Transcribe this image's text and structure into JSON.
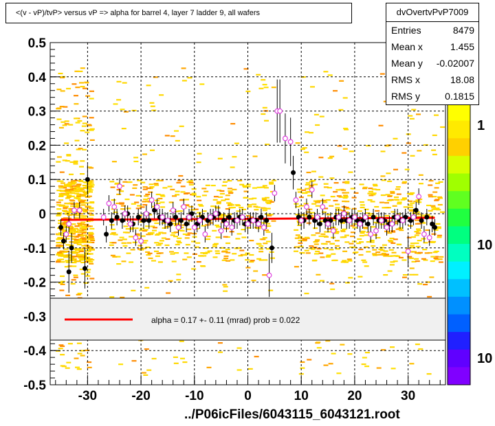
{
  "title": "<(v - vP)/tvP> versus   vP => alpha for barrel 4, layer 7 ladder 9, all wafers",
  "stats": {
    "name": "dvOvertvPvP7009",
    "rows": [
      {
        "label": "Entries",
        "value": "8479"
      },
      {
        "label": "Mean x",
        "value": "1.455"
      },
      {
        "label": "Mean y",
        "value": "-0.02007"
      },
      {
        "label": "RMS x",
        "value": "18.08"
      },
      {
        "label": "RMS y",
        "value": "0.1815"
      }
    ]
  },
  "fit_legend": "alpha =    0.17 +-   0.11 (mrad) prob = 0.022",
  "footer": "../P06icFiles/6043115_6043121.root",
  "colors": {
    "fit_line": "#ff0000",
    "profile_black": "#000000",
    "profile_magenta": "#e040e0",
    "scatter_main": "#ffd700",
    "legend_box": "#f0f0f0"
  },
  "chart_data": {
    "type": "scatter",
    "xlim": [
      -37,
      37
    ],
    "ylim": [
      -0.5,
      0.5
    ],
    "x_ticks": [
      -30,
      -20,
      -10,
      0,
      10,
      20,
      30
    ],
    "x_tick_labels": [
      "-30",
      "-20",
      "-10",
      "0",
      "10",
      "20",
      "30"
    ],
    "y_ticks": [
      -0.5,
      -0.4,
      -0.3,
      -0.2,
      -0.1,
      0,
      0.1,
      0.2,
      0.3,
      0.4,
      0.5
    ],
    "y_tick_labels": [
      "-0.5",
      "-0.4",
      "-0.3",
      "-0.2",
      "-0.1",
      "0",
      "0.1",
      "0.2",
      "0.3",
      "0.4",
      "0.5"
    ],
    "grid": true,
    "colorbar_labels": [
      "1",
      "10",
      "10"
    ],
    "fit": {
      "x": [
        -35,
        35
      ],
      "y": [
        -0.018,
        -0.012
      ]
    },
    "series": [
      {
        "marker": "filled-circle",
        "x": [
          -35.0,
          -34.5,
          -33.5,
          -33.0,
          -30.5,
          -30.0,
          -26.5,
          -25.5,
          -24.5,
          -23.5,
          -22.5,
          -21.5,
          -20.5,
          -19.5,
          -18.5,
          -17.5,
          -16.5,
          -15.5,
          -14.5,
          -13.5,
          -12.5,
          -11.5,
          -10.5,
          -9.5,
          -8.5,
          -7.5,
          -6.5,
          -5.5,
          -4.5,
          -3.5,
          -2.5,
          -1.5,
          -0.5,
          0.5,
          1.5,
          2.5,
          3.5,
          4.5,
          8.5,
          9.5,
          10.5,
          11.5,
          12.5,
          13.5,
          14.5,
          15.5,
          16.5,
          17.5,
          18.5,
          19.5,
          20.5,
          21.5,
          22.5,
          23.5,
          24.5,
          25.5,
          26.5,
          27.5,
          28.5,
          29.5,
          30.5,
          31.5,
          32.5,
          33.5,
          34.5,
          35.0
        ],
        "y": [
          -0.04,
          -0.08,
          -0.17,
          -0.1,
          -0.16,
          0.1,
          -0.06,
          -0.02,
          -0.01,
          -0.02,
          0.0,
          -0.03,
          -0.01,
          -0.02,
          -0.02,
          0.01,
          -0.01,
          -0.02,
          -0.03,
          -0.01,
          -0.02,
          -0.03,
          0.0,
          -0.03,
          -0.01,
          -0.02,
          -0.01,
          0.0,
          -0.02,
          -0.01,
          -0.02,
          -0.01,
          -0.03,
          -0.02,
          -0.02,
          -0.01,
          -0.02,
          -0.1,
          0.12,
          -0.01,
          -0.02,
          -0.01,
          -0.02,
          -0.03,
          -0.02,
          -0.02,
          -0.01,
          -0.02,
          -0.02,
          -0.01,
          -0.02,
          -0.02,
          -0.03,
          -0.01,
          -0.02,
          -0.02,
          -0.03,
          -0.01,
          -0.02,
          -0.01,
          -0.02,
          0.01,
          -0.02,
          -0.01,
          -0.03,
          -0.04
        ]
      },
      {
        "marker": "open-circle",
        "x": [
          -34.0,
          -33.5,
          -32.5,
          -31.5,
          -27.0,
          -26.0,
          -25.0,
          -24.0,
          -23.0,
          -22.0,
          -21.0,
          -20.0,
          -19.0,
          -18.0,
          -17.0,
          -16.0,
          -15.0,
          -14.0,
          -13.0,
          -12.0,
          -11.0,
          -10.0,
          -9.0,
          -8.0,
          -7.0,
          -6.0,
          -5.0,
          -4.0,
          -3.0,
          -2.0,
          -1.0,
          0.0,
          1.0,
          2.0,
          3.0,
          4.0,
          5.0,
          5.5,
          6.0,
          7.0,
          8.0,
          9.0,
          10.0,
          11.0,
          12.0,
          13.0,
          14.0,
          15.0,
          16.0,
          17.0,
          18.0,
          19.0,
          20.0,
          21.0,
          22.0,
          23.0,
          24.0,
          25.0,
          26.0,
          27.0,
          28.0,
          29.0,
          30.0,
          31.0,
          32.0,
          33.0,
          34.0
        ],
        "y": [
          -0.06,
          -0.03,
          0.01,
          0.01,
          -0.01,
          0.03,
          0.02,
          0.08,
          0.0,
          -0.03,
          -0.07,
          -0.08,
          0.0,
          0.04,
          0.02,
          -0.01,
          -0.02,
          0.01,
          -0.04,
          0.02,
          -0.01,
          -0.04,
          -0.02,
          -0.06,
          -0.01,
          0.0,
          -0.05,
          -0.03,
          -0.04,
          -0.02,
          -0.01,
          -0.03,
          -0.02,
          -0.03,
          -0.04,
          -0.18,
          0.06,
          0.3,
          0.3,
          0.22,
          0.21,
          0.04,
          -0.02,
          0.02,
          0.07,
          -0.01,
          0.02,
          -0.03,
          -0.05,
          -0.01,
          0.0,
          -0.02,
          -0.01,
          -0.03,
          -0.01,
          -0.06,
          -0.05,
          -0.02,
          -0.04,
          -0.03,
          -0.01,
          -0.02,
          -0.11,
          -0.01,
          0.05,
          -0.06,
          -0.07
        ]
      }
    ]
  }
}
